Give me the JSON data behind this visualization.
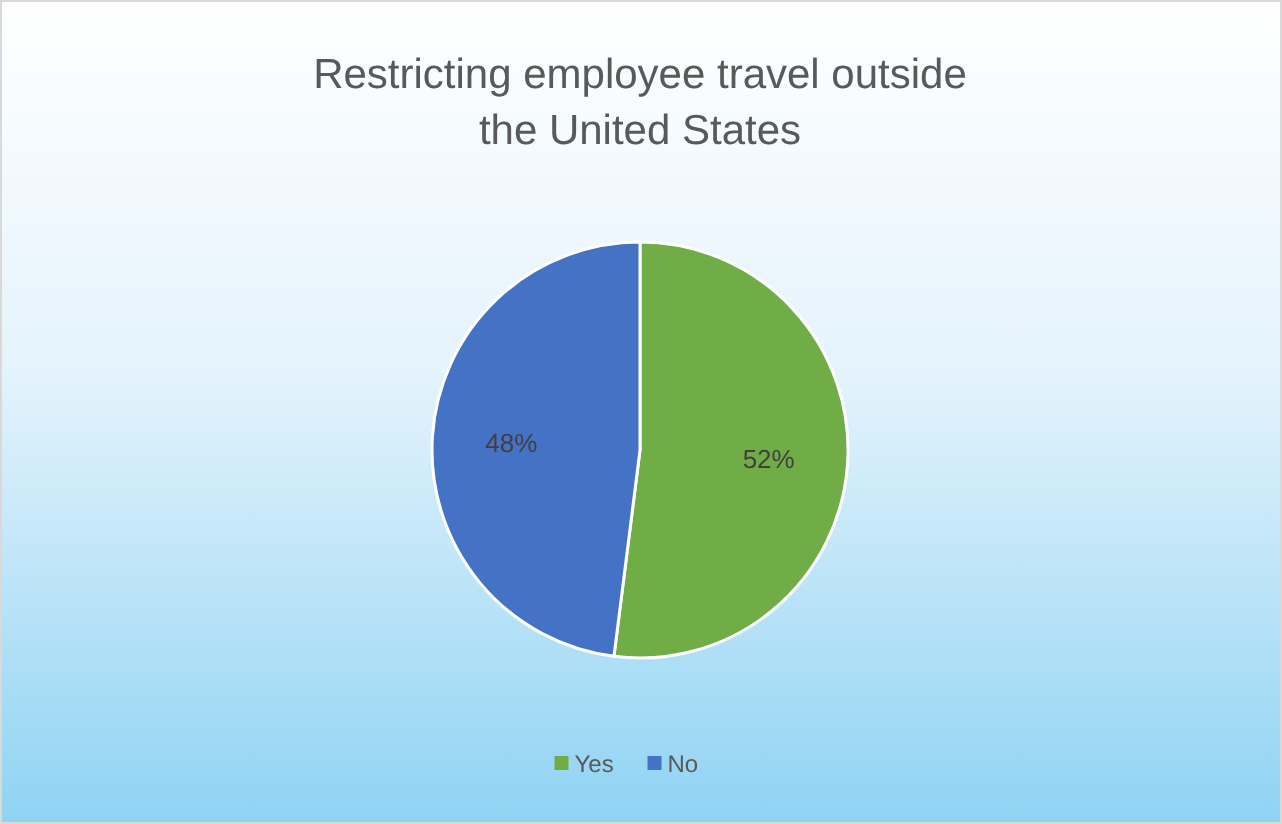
{
  "chart_data": {
    "type": "pie",
    "title": "Restricting employee travel outside the United States",
    "categories": [
      "Yes",
      "No"
    ],
    "values": [
      52,
      48
    ],
    "colors": [
      "#70ad47",
      "#4472c4"
    ],
    "value_labels": [
      "52%",
      "48%"
    ],
    "legend": "bottom"
  }
}
